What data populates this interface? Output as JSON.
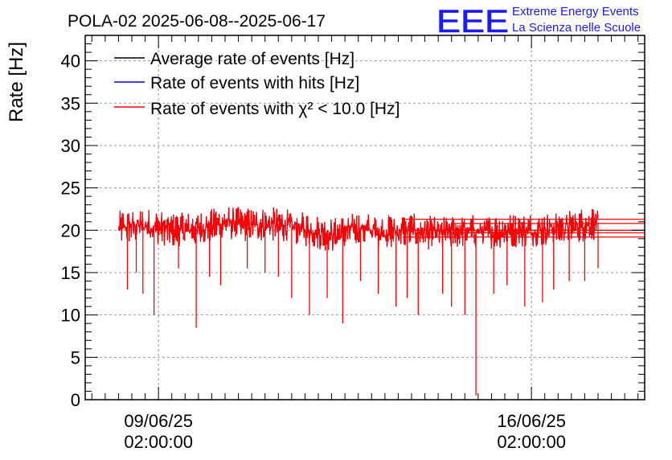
{
  "chart_data": {
    "type": "line",
    "title": "POLA-02 2025-06-08--2025-06-17",
    "ylabel": "Rate [Hz]",
    "xlabel": "",
    "ylim": [
      0,
      43
    ],
    "yticks": [
      0,
      5,
      10,
      15,
      20,
      25,
      30,
      35,
      40
    ],
    "xlim": [
      "2025-06-07 17:00",
      "2025-06-18 05:00"
    ],
    "xticks": [
      {
        "x": "2025-06-09 02:00",
        "line1": "09/06/25",
        "line2": "02:00:00"
      },
      {
        "x": "2025-06-16 02:00",
        "line1": "16/06/25",
        "line2": "02:00:00"
      }
    ],
    "grid": true,
    "legend_position": "top-left",
    "logo": {
      "text": "EEE",
      "line1": "Extreme Energy Events",
      "line2": "La Scienza nelle Scuole",
      "color": "#1a1aff"
    },
    "series": [
      {
        "name": "Average rate of events [Hz]",
        "color": "#000000",
        "values_summary": "hidden behind red trace, ~20"
      },
      {
        "name": "Rate of events with hits [Hz]",
        "color": "#0000ff",
        "values_summary": "hidden behind red trace, ~20"
      },
      {
        "name": "Rate of events with χ² < 10.0 [Hz]",
        "color": "#ff0000"
      }
    ],
    "data_range": [
      "2025-06-08 08:00",
      "2025-06-17 08:00"
    ],
    "baseline": [
      [
        "2025-06-08 08:00",
        20.3
      ],
      [
        "2025-06-08 20:00",
        20.6
      ],
      [
        "2025-06-09 08:00",
        20.0
      ],
      [
        "2025-06-09 20:00",
        20.2
      ],
      [
        "2025-06-10 08:00",
        20.9
      ],
      [
        "2025-06-10 20:00",
        20.6
      ],
      [
        "2025-06-11 08:00",
        20.7
      ],
      [
        "2025-06-11 20:00",
        20.1
      ],
      [
        "2025-06-12 08:00",
        19.4
      ],
      [
        "2025-06-12 20:00",
        20.2
      ],
      [
        "2025-06-13 08:00",
        19.8
      ],
      [
        "2025-06-13 20:00",
        20.0
      ],
      [
        "2025-06-14 08:00",
        19.6
      ],
      [
        "2025-06-14 20:00",
        19.9
      ],
      [
        "2025-06-15 08:00",
        19.8
      ],
      [
        "2025-06-15 20:00",
        20.0
      ],
      [
        "2025-06-16 08:00",
        20.1
      ],
      [
        "2025-06-16 20:00",
        20.4
      ],
      [
        "2025-06-17 08:00",
        20.9
      ]
    ],
    "dips": [
      [
        "2025-06-08 12:00",
        13.0
      ],
      [
        "2025-06-08 16:00",
        15.0
      ],
      [
        "2025-06-08 19:00",
        12.5
      ],
      [
        "2025-06-09 00:00",
        10.0
      ],
      [
        "2025-06-09 11:00",
        15.5
      ],
      [
        "2025-06-09 19:00",
        8.5
      ],
      [
        "2025-06-10 01:00",
        14.5
      ],
      [
        "2025-06-10 06:00",
        13.5
      ],
      [
        "2025-06-10 18:00",
        15.5
      ],
      [
        "2025-06-11 02:00",
        15.0
      ],
      [
        "2025-06-11 08:00",
        14.5
      ],
      [
        "2025-06-11 14:00",
        12.0
      ],
      [
        "2025-06-11 22:00",
        10.0
      ],
      [
        "2025-06-12 06:00",
        12.0
      ],
      [
        "2025-06-12 13:00",
        9.0
      ],
      [
        "2025-06-12 21:00",
        14.0
      ],
      [
        "2025-06-13 05:00",
        12.5
      ],
      [
        "2025-06-13 13:00",
        11.0
      ],
      [
        "2025-06-13 18:00",
        12.0
      ],
      [
        "2025-06-13 23:00",
        10.0
      ],
      [
        "2025-06-14 10:00",
        12.5
      ],
      [
        "2025-06-14 14:00",
        11.0
      ],
      [
        "2025-06-14 20:00",
        10.0
      ],
      [
        "2025-06-15 01:00",
        0.5
      ],
      [
        "2025-06-15 09:00",
        12.5
      ],
      [
        "2025-06-15 15:00",
        13.5
      ],
      [
        "2025-06-15 23:00",
        11.0
      ],
      [
        "2025-06-16 07:00",
        11.5
      ],
      [
        "2025-06-16 12:00",
        13.0
      ],
      [
        "2025-06-16 19:00",
        14.0
      ],
      [
        "2025-06-17 02:00",
        14.0
      ],
      [
        "2025-06-17 08:00",
        15.5
      ]
    ],
    "trailing_lines": [
      19.2,
      19.7,
      20.0,
      20.8,
      21.3
    ]
  }
}
